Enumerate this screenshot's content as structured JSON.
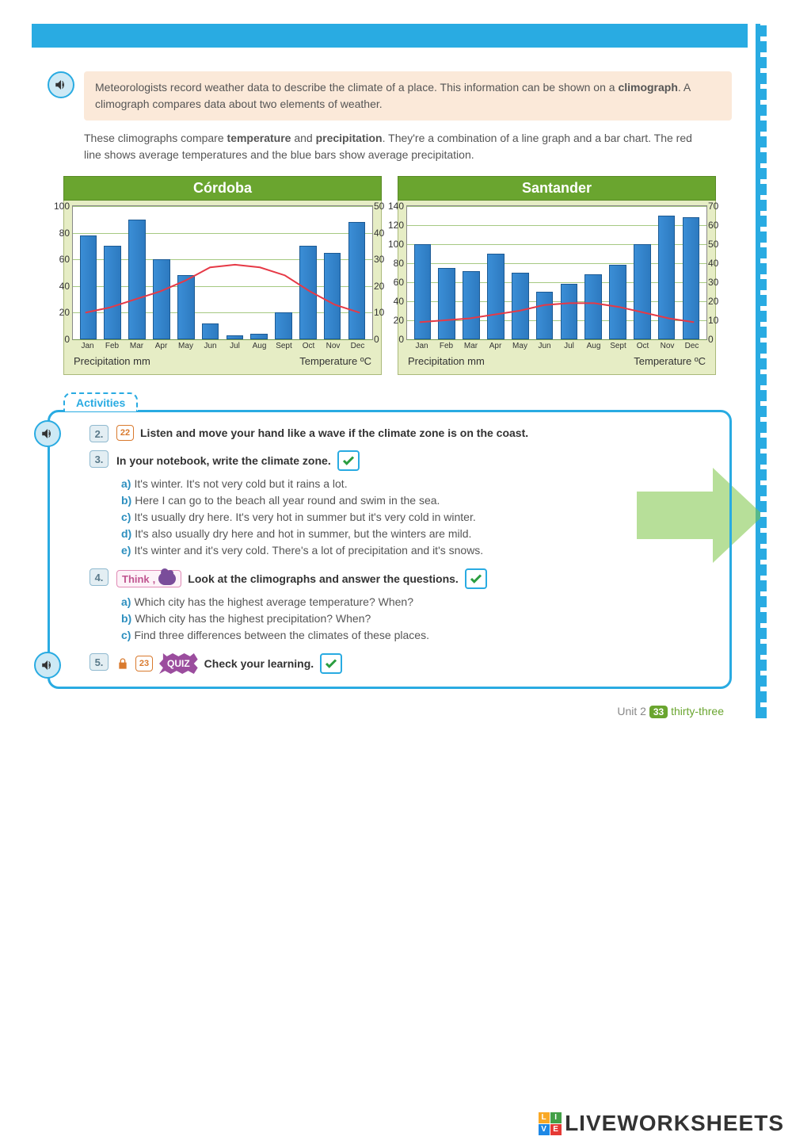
{
  "intro": {
    "text_before": "Meteorologists record weather data to describe the climate of a place. This information can be shown on a ",
    "bold": "climograph",
    "text_after": ". A climograph compares data about two elements of weather."
  },
  "para2": {
    "t1": "These climographs compare ",
    "b1": "temperature",
    "t2": " and ",
    "b2": "precipitation",
    "t3": ". They're a combination of a line graph and a bar chart. The red line shows average temperatures and the blue bars show average precipitation."
  },
  "charts": {
    "months": [
      "Jan",
      "Feb",
      "Mar",
      "Apr",
      "May",
      "Jun",
      "Jul",
      "Aug",
      "Sept",
      "Oct",
      "Nov",
      "Dec"
    ],
    "left_axis_label": "Precipitation mm",
    "right_axis_label": "Temperature ºC",
    "bar_color": "#2d7ac0",
    "line_color": "#e63946",
    "grid_color": "#6aa52f",
    "bg_color": "#e6edc5",
    "title_bg": "#6aa52f",
    "cordoba": {
      "title": "Córdoba",
      "precip_max": 100,
      "precip_ticks": [
        0,
        20,
        40,
        60,
        80,
        100
      ],
      "temp_max": 50,
      "temp_ticks": [
        0,
        10,
        20,
        30,
        40,
        50
      ],
      "precip": [
        78,
        70,
        90,
        60,
        48,
        12,
        3,
        4,
        20,
        70,
        65,
        88
      ],
      "temp": [
        10,
        12,
        15,
        18,
        22,
        27,
        28,
        27,
        24,
        18,
        13,
        10
      ]
    },
    "santander": {
      "title": "Santander",
      "precip_max": 140,
      "precip_ticks": [
        0,
        20,
        40,
        60,
        80,
        100,
        120,
        140
      ],
      "temp_max": 70,
      "temp_ticks": [
        0,
        10,
        20,
        30,
        40,
        50,
        60,
        70
      ],
      "precip": [
        100,
        75,
        72,
        90,
        70,
        50,
        58,
        68,
        78,
        100,
        130,
        128
      ],
      "temp": [
        9,
        10,
        11,
        13,
        15,
        18,
        19,
        19,
        17,
        14,
        11,
        9
      ]
    }
  },
  "activities": {
    "label": "Activities",
    "q2": {
      "num": "2.",
      "icon_num": "22",
      "text": "Listen and move your hand like a wave if the climate zone is on the coast."
    },
    "q3": {
      "num": "3.",
      "heading": "In your notebook, write the climate zone.",
      "items": {
        "a": "It's winter. It's not very cold but it rains a lot.",
        "b": "Here I can go to the beach all year round and swim in the sea.",
        "c": "It's usually dry here. It's very hot in summer but it's very cold in winter.",
        "d": "It's also usually dry here and hot in summer, but the winters are mild.",
        "e": "It's winter and it's very cold. There's a lot of precipitation and it's snows."
      }
    },
    "q4": {
      "num": "4.",
      "think": "Think",
      "heading": "Look at the climographs and answer the questions.",
      "items": {
        "a": "Which city has the highest average temperature? When?",
        "b": "Which city has the highest precipitation? When?",
        "c": "Find three differences between the climates of these places."
      }
    },
    "q5": {
      "num": "5.",
      "icon_num": "23",
      "quiz": "QUIZ",
      "text": "Check your learning."
    }
  },
  "footer": {
    "unit": "Unit 2",
    "page": "33",
    "word": "thirty-three"
  },
  "watermark": "LIVEWORKSHEETS"
}
